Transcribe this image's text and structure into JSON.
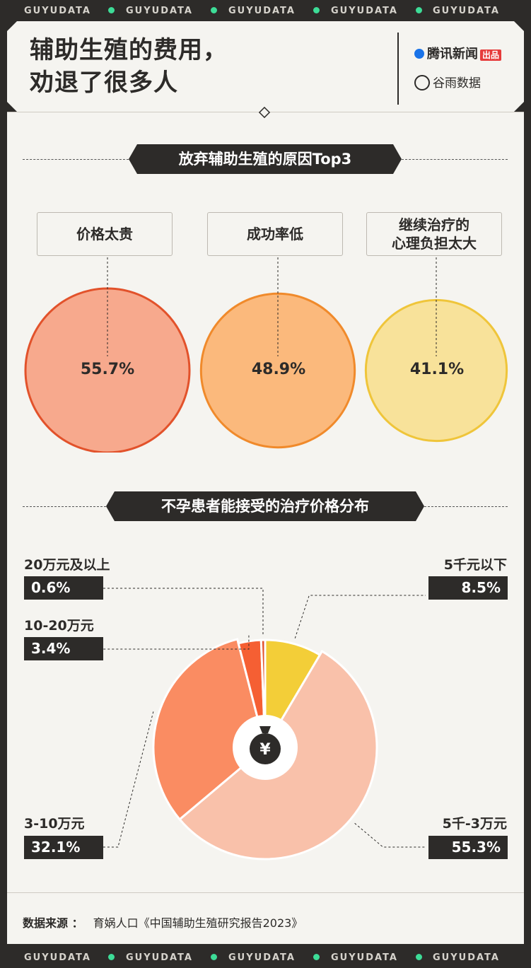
{
  "brand_strip": [
    "GUYUDATA",
    "GUYUDATA",
    "GUYUDATA",
    "GUYUDATA",
    "GUYUDATA"
  ],
  "header": {
    "title_line1": "辅助生殖的费用，",
    "title_line2": "劝退了很多人",
    "logo1_text": "腾讯新闻",
    "logo1_tag": "出品",
    "logo2_text": "谷雨数据"
  },
  "section1": {
    "title": "放弃辅助生殖的原因Top3",
    "reasons": [
      {
        "label_l1": "价格太贵",
        "label_l2": "",
        "value": 55.7,
        "value_label": "55.7%",
        "fill": "#f7a98d",
        "stroke": "#e2522b"
      },
      {
        "label_l1": "成功率低",
        "label_l2": "",
        "value": 48.9,
        "value_label": "48.9%",
        "fill": "#fbb97c",
        "stroke": "#f08a2b"
      },
      {
        "label_l1": "继续治疗的",
        "label_l2": "心理负担太大",
        "value": 41.1,
        "value_label": "41.1%",
        "fill": "#f8e29a",
        "stroke": "#efc53a"
      }
    ]
  },
  "section2": {
    "title": "不孕患者能接受的治疗价格分布"
  },
  "chart_data": {
    "type": "pie",
    "categories": [
      "5千元以下",
      "5千-3万元",
      "3-10万元",
      "10-20万元",
      "20万元及以上"
    ],
    "values": [
      8.5,
      55.3,
      32.1,
      3.4,
      0.6
    ],
    "value_labels": [
      "8.5%",
      "55.3%",
      "32.1%",
      "3.4%",
      "0.6%"
    ],
    "colors": [
      "#f3ce38",
      "#f9c1aa",
      "#fa8c62",
      "#f55f33",
      "#e2522b"
    ],
    "center_icon": "money-bag-yuan-icon",
    "title": ""
  },
  "footer": {
    "source_label": "数据来源 ：",
    "source_text": "育娲人口《中国辅助生殖研究报告2023》"
  }
}
